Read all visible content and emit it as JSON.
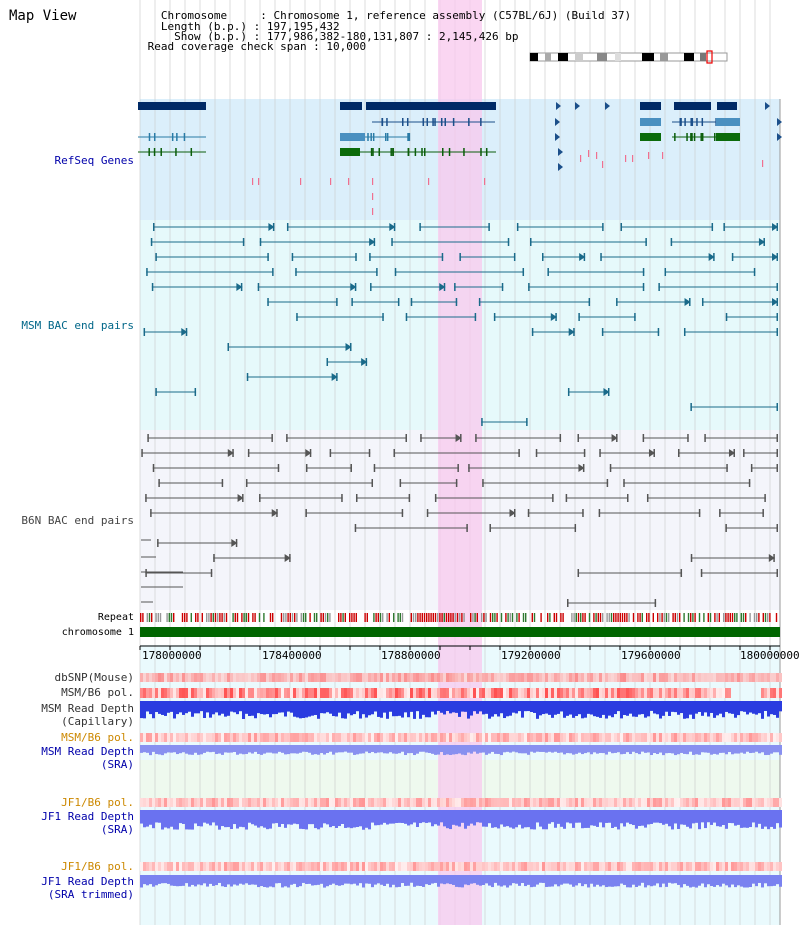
{
  "title": "Map View",
  "header": {
    "lines": [
      "   Chromosome     : Chromosome 1, reference assembly (C57BL/6J) (Build 37)",
      "   Length (b.p.) : 197,195,432",
      "     Show (b.p.) : 177,986,382-180,131,807 : 2,145,426 bp",
      " Read coverage check span : 10,000"
    ]
  },
  "tracks": {
    "refseq": "RefSeq Genes",
    "msm_bac": "MSM BAC end pairs",
    "b6n_bac": "B6N BAC end pairs",
    "repeat": "Repeat",
    "chromosome": "chromosome 1",
    "dbsnp": "dbSNP(Mouse)",
    "msm_b6_pol": "MSM/B6 pol.",
    "msm_depth_cap_1": "MSM Read Depth",
    "msm_depth_cap_2": "(Capillary)",
    "msm_b6_pol_2": "MSM/B6 pol.",
    "msm_depth_sra_1": "MSM Read Depth",
    "msm_depth_sra_2": "(SRA)",
    "jf1_b6_pol": "JF1/B6 pol.",
    "jf1_depth_sra_1": "JF1 Read Depth",
    "jf1_depth_sra_2": "(SRA)",
    "jf1_b6_pol_2": "JF1/B6 pol.",
    "jf1_depth_trim_1": "JF1 Read Depth",
    "jf1_depth_trim_2": "(SRA trimmed)"
  },
  "axis": {
    "ticks": [
      "178000000",
      "178400000",
      "178800000",
      "179200000",
      "179600000",
      "180000000"
    ]
  },
  "colors": {
    "refseq_label": "#0000aa",
    "msm_label": "#006688",
    "b6n_label": "#444444",
    "pol_label": "#cc8800",
    "depth_label": "#0000aa",
    "highlight": "#f8d0f0",
    "chromosome_bar": "#006600"
  }
}
